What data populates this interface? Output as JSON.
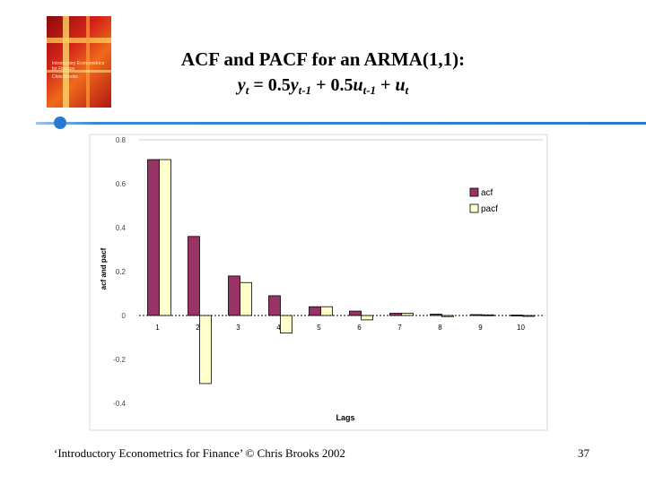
{
  "slide": {
    "title_line1": "ACF and PACF for an ARMA(1,1):",
    "title_line2": {
      "y": "y",
      "t": "t",
      "eq": " = 0.5",
      "y2": "y",
      "tm1a": "t-1",
      "plus1": " + 0.5",
      "u": "u",
      "tm1b": "t-1",
      "plus2": " + ",
      "u2": "u",
      "t2": "t"
    },
    "footer": "‘Introductory Econometrics for Finance’ © Chris Brooks 2002",
    "page_number": "37",
    "cover_text": "Introductory Econometrics for Finance",
    "cover_author": "Chris Brooks",
    "accent_color": "#2a78d0"
  },
  "chart_data": {
    "type": "bar",
    "categories": [
      "1",
      "2",
      "3",
      "4",
      "5",
      "6",
      "7",
      "8",
      "9",
      "10"
    ],
    "series": [
      {
        "name": "acf",
        "color": "#993366",
        "values": [
          0.71,
          0.36,
          0.18,
          0.09,
          0.04,
          0.02,
          0.01,
          0.006,
          0.004,
          0.002
        ]
      },
      {
        "name": "pacf",
        "color": "#ffffcc",
        "values": [
          0.71,
          -0.31,
          0.15,
          -0.08,
          0.04,
          -0.02,
          0.01,
          -0.005,
          0.003,
          -0.001
        ]
      }
    ],
    "xlabel": "Lags",
    "ylabel": "acf and pacf",
    "ylim": [
      -0.4,
      0.8
    ],
    "yticks": [
      -0.4,
      -0.2,
      0,
      0.2,
      0.4,
      0.6,
      0.8
    ],
    "ytick_labels": [
      "-0.4",
      "-0.2",
      "0",
      "0.2",
      "0.4",
      "0.6",
      "0.8"
    ],
    "legend_position": "right"
  }
}
